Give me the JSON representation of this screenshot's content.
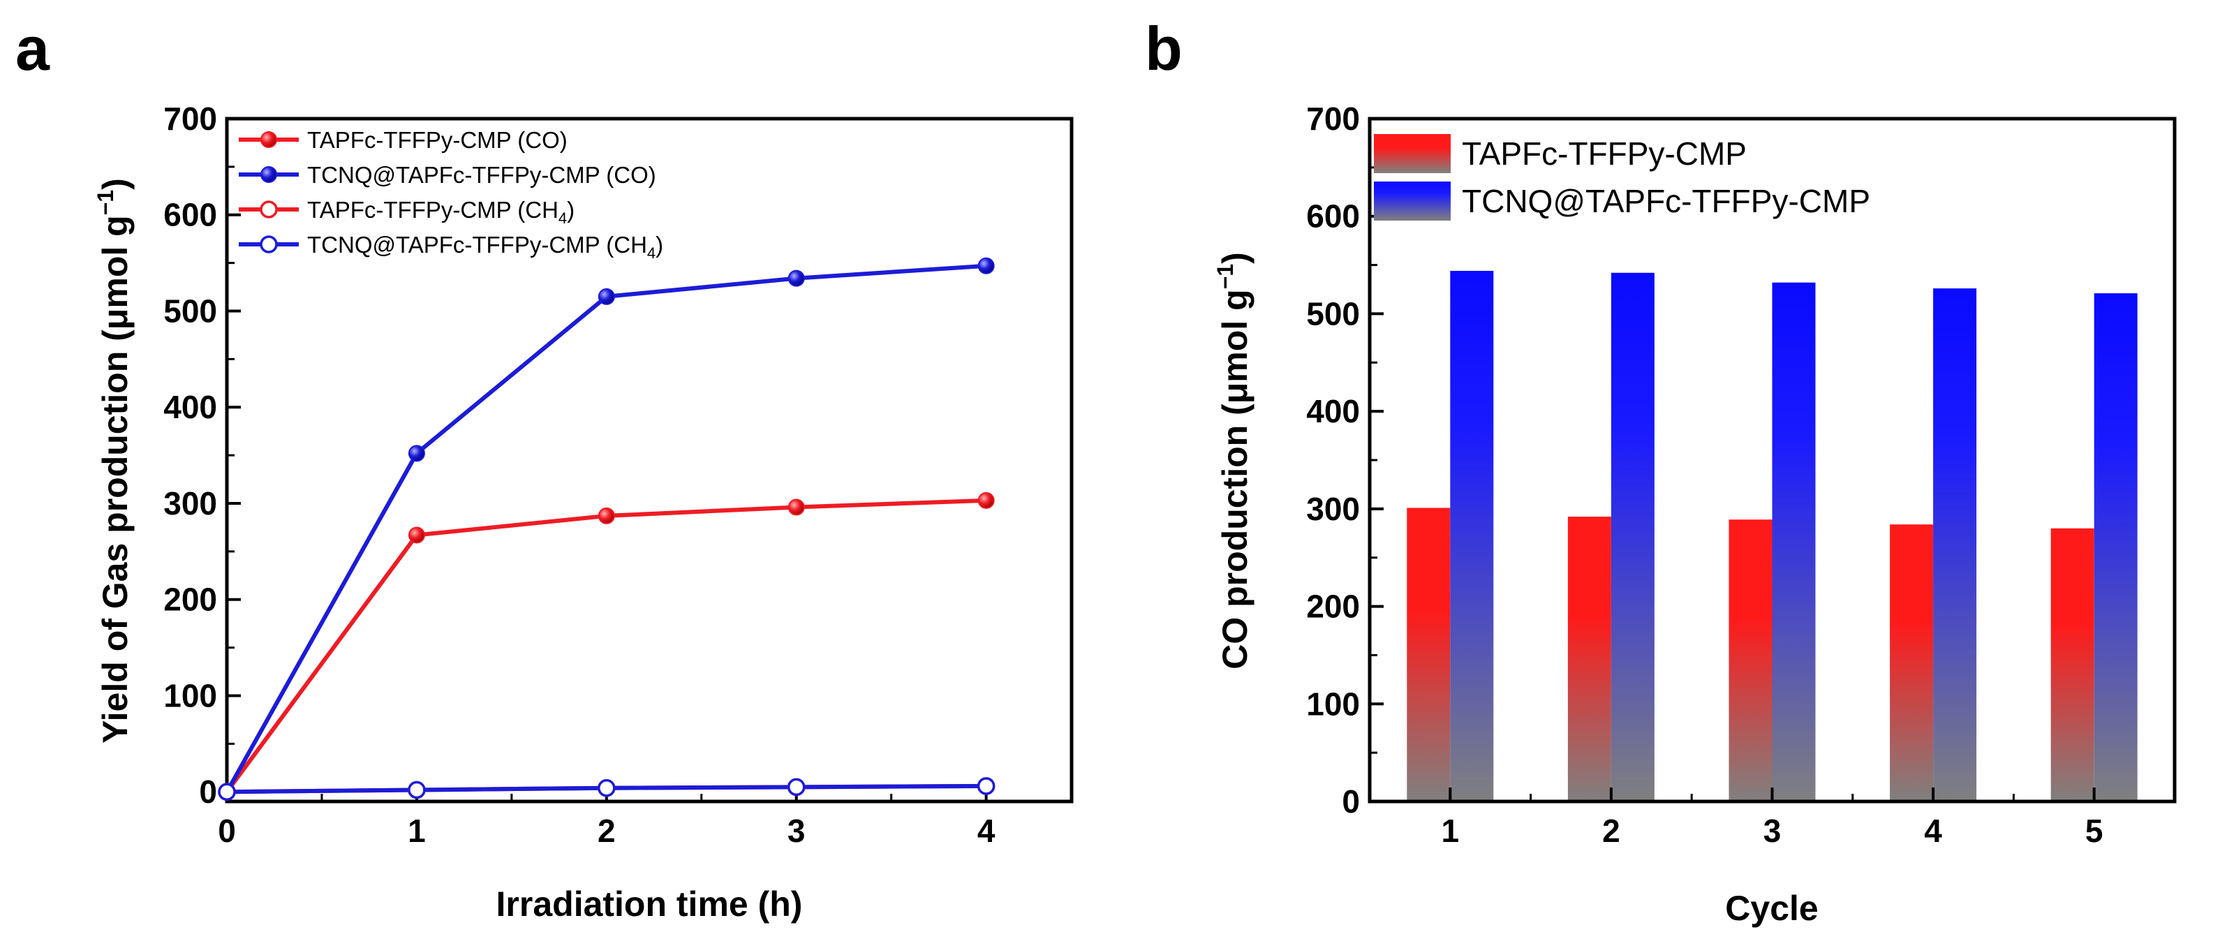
{
  "panels": {
    "a_label": "a",
    "b_label": "b"
  },
  "chart_data": [
    {
      "type": "line",
      "panel": "a",
      "xlabel": "Irradiation time (h)",
      "ylabel_main": "Yield of Gas production (μmol g",
      "ylabel_sup": "−1",
      "ylabel_close": ")",
      "x": [
        0,
        1,
        2,
        3,
        4
      ],
      "xlim": [
        0,
        4.45
      ],
      "ylim": [
        -10,
        700
      ],
      "xticks": [
        0,
        1,
        2,
        3,
        4
      ],
      "yticks": [
        0,
        100,
        200,
        300,
        400,
        500,
        600,
        700
      ],
      "legend_position": "top-left",
      "series": [
        {
          "name": "TAPFc-TFFPy-CMP (CO)",
          "label_main": "TAPFc-TFFPy-CMP (CO)",
          "label_sub": "",
          "label_end": "",
          "color": "#ee1c24",
          "marker": "filled",
          "values": [
            0,
            267,
            287,
            296,
            303
          ]
        },
        {
          "name": "TCNQ@TAPFc-TFFPy-CMP (CO)",
          "label_main": "TCNQ@TAPFc-TFFPy-CMP (CO)",
          "label_sub": "",
          "label_end": "",
          "color": "#1c1cd8",
          "marker": "filled",
          "values": [
            0,
            352,
            515,
            534,
            547
          ]
        },
        {
          "name": "TAPFc-TFFPy-CMP (CH4)",
          "label_main": "TAPFc-TFFPy-CMP (CH",
          "label_sub": "4",
          "label_end": ")",
          "color": "#ee1c24",
          "marker": "open",
          "values": [
            0,
            2,
            4,
            5,
            6
          ]
        },
        {
          "name": "TCNQ@TAPFc-TFFPy-CMP (CH4)",
          "label_main": "TCNQ@TAPFc-TFFPy-CMP (CH",
          "label_sub": "4",
          "label_end": ")",
          "color": "#1c1cd8",
          "marker": "open",
          "values": [
            0,
            2,
            4,
            5,
            6
          ]
        }
      ]
    },
    {
      "type": "bar",
      "panel": "b",
      "xlabel": "Cycle",
      "ylabel_main": "CO production (μmol g",
      "ylabel_sup": "−1",
      "ylabel_close": ")",
      "categories": [
        "1",
        "2",
        "3",
        "4",
        "5"
      ],
      "ylim": [
        0,
        700
      ],
      "yticks": [
        0,
        100,
        200,
        300,
        400,
        500,
        600,
        700
      ],
      "legend_position": "top-left",
      "series": [
        {
          "name": "TAPFc-TFFPy-CMP",
          "color_top": "#ff1a1a",
          "color_bottom": "#808080",
          "values": [
            301,
            292,
            289,
            284,
            280
          ]
        },
        {
          "name": "TCNQ@TAPFc-TFFPy-CMP",
          "color_top": "#0a0aff",
          "color_bottom": "#808080",
          "values": [
            544,
            542,
            532,
            526,
            521
          ]
        }
      ]
    }
  ]
}
